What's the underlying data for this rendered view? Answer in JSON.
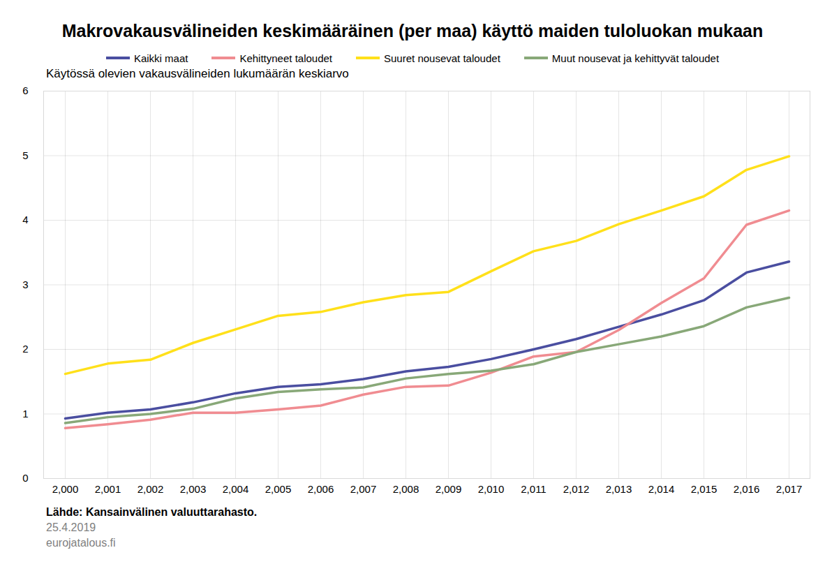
{
  "chart_data": {
    "type": "line",
    "title": "Makrovakausvälineiden keskimääräinen (per maa) käyttö maiden tuloluokan mukaan",
    "subtitle": "Käytössä olevien vakausvälineiden lukumäärän keskiarvo",
    "caption": [
      "Lähde: Kansainvälinen valuuttarahasto.",
      "25.4.2019",
      "eurojatalous.fi"
    ],
    "x": [
      2000,
      2001,
      2002,
      2003,
      2004,
      2005,
      2006,
      2007,
      2008,
      2009,
      2010,
      2011,
      2012,
      2013,
      2014,
      2015,
      2016,
      2017
    ],
    "series": [
      {
        "name": "Kaikki maat",
        "color": "#4a4ea0",
        "values": [
          0.93,
          1.02,
          1.07,
          1.18,
          1.32,
          1.42,
          1.46,
          1.54,
          1.66,
          1.73,
          1.85,
          2.0,
          2.16,
          2.35,
          2.54,
          2.76,
          3.19,
          3.36
        ]
      },
      {
        "name": "Kehittyneet taloudet",
        "color": "#f08c91",
        "values": [
          0.78,
          0.84,
          0.91,
          1.02,
          1.02,
          1.07,
          1.13,
          1.3,
          1.42,
          1.44,
          1.64,
          1.89,
          1.96,
          2.3,
          2.72,
          3.1,
          3.93,
          4.15
        ]
      },
      {
        "name": "Suuret nousevat taloudet",
        "color": "#ffe01a",
        "values": [
          1.62,
          1.78,
          1.84,
          2.1,
          2.31,
          2.52,
          2.58,
          2.73,
          2.84,
          2.89,
          3.21,
          3.52,
          3.68,
          3.94,
          4.15,
          4.37,
          4.78,
          4.99
        ]
      },
      {
        "name": "Muut nousevat ja kehittyvät taloudet",
        "color": "#88a878",
        "values": [
          0.86,
          0.95,
          1.0,
          1.08,
          1.24,
          1.34,
          1.38,
          1.41,
          1.55,
          1.62,
          1.67,
          1.77,
          1.96,
          2.08,
          2.2,
          2.36,
          2.65,
          2.8
        ]
      }
    ],
    "ylim": [
      0,
      6
    ],
    "yticks": [
      0,
      1,
      2,
      3,
      4,
      5,
      6
    ],
    "grid": true,
    "legend": "top"
  }
}
